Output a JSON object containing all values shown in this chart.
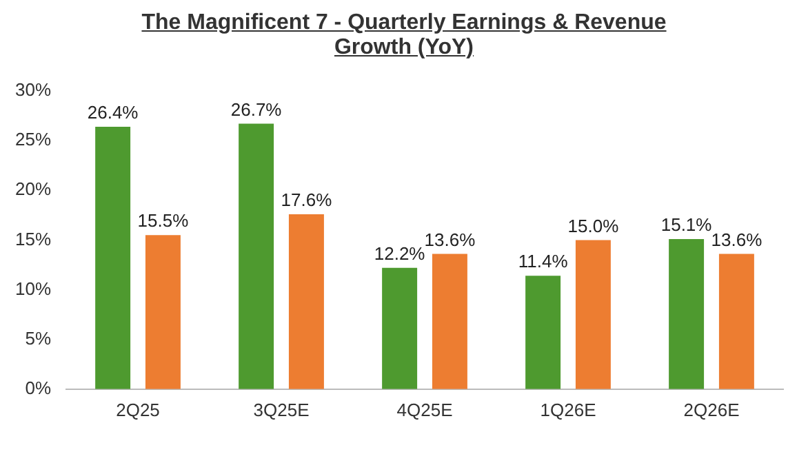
{
  "chart_data": {
    "type": "bar",
    "title": "The Magnificent 7 - Quarterly Earnings & Revenue Growth (YoY)",
    "categories": [
      "2Q25",
      "3Q25E",
      "4Q25E",
      "1Q26E",
      "2Q26E"
    ],
    "series": [
      {
        "color": "#4e9a2f",
        "values": [
          26.4,
          26.7,
          12.2,
          11.4,
          15.1
        ],
        "value_labels": [
          "26.4%",
          "26.7%",
          "12.2%",
          "11.4%",
          "15.1%"
        ]
      },
      {
        "color": "#ed7d31",
        "values": [
          15.5,
          17.6,
          13.6,
          15.0,
          13.6
        ],
        "value_labels": [
          "15.5%",
          "17.6%",
          "13.6%",
          "15.0%",
          "13.6%"
        ]
      }
    ],
    "ylim": [
      0,
      30
    ],
    "yticks": [
      {
        "value": 0,
        "label": "0%"
      },
      {
        "value": 5,
        "label": "5%"
      },
      {
        "value": 10,
        "label": "10%"
      },
      {
        "value": 15,
        "label": "15%"
      },
      {
        "value": 20,
        "label": "20%"
      },
      {
        "value": 25,
        "label": "25%"
      },
      {
        "value": 30,
        "label": "30%"
      }
    ],
    "grid": false,
    "legend": false
  }
}
